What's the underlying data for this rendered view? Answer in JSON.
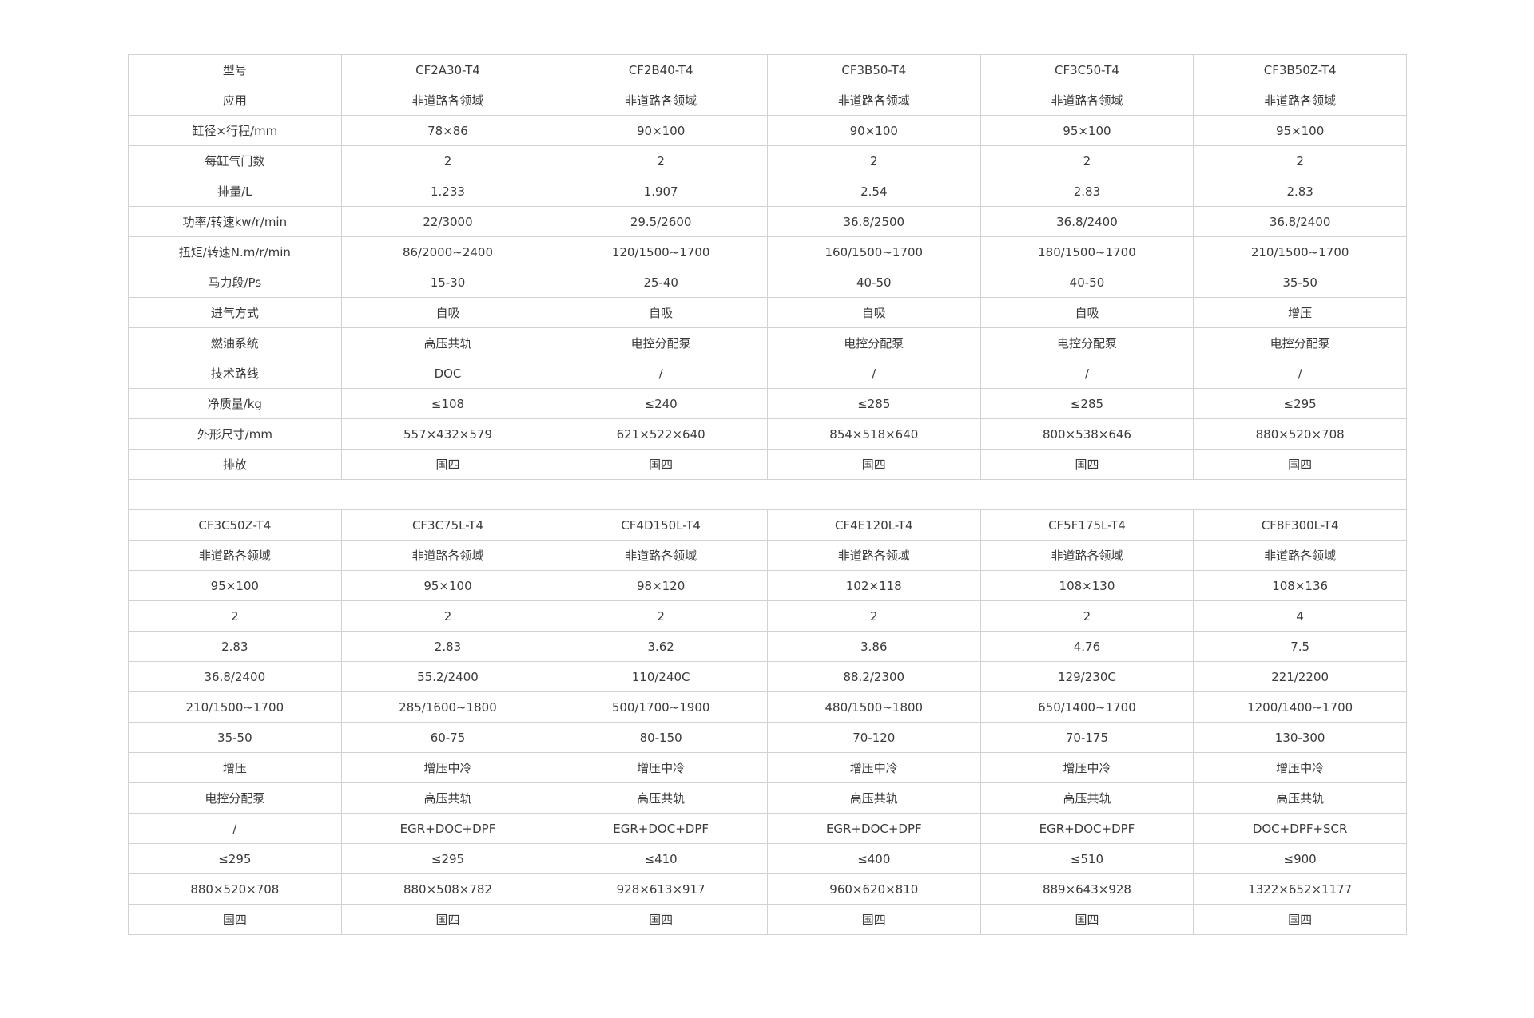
{
  "labels": [
    "型号",
    "应用",
    "缸径×行程/mm",
    "每缸气门数",
    "排量/L",
    "功率/转速kw/r/min",
    "扭矩/转速N.m/r/min",
    "马力段/Ps",
    "进气方式",
    "燃油系统",
    "技术路线",
    "净质量/kg",
    "外形尺寸/mm",
    "排放"
  ],
  "table1": {
    "models": [
      [
        "CF2A30-T4",
        "非道路各领域",
        "78×86",
        "2",
        "1.233",
        "22/3000",
        "86/2000~2400",
        "15-30",
        "自吸",
        "高压共轨",
        "DOC",
        "≤108",
        "557×432×579",
        "国四"
      ],
      [
        "CF2B40-T4",
        "非道路各领域",
        "90×100",
        "2",
        "1.907",
        "29.5/2600",
        "120/1500~1700",
        "25-40",
        "自吸",
        "电控分配泵",
        "/",
        "≤240",
        "621×522×640",
        "国四"
      ],
      [
        "CF3B50-T4",
        "非道路各领域",
        "90×100",
        "2",
        "2.54",
        "36.8/2500",
        "160/1500~1700",
        "40-50",
        "自吸",
        "电控分配泵",
        "/",
        "≤285",
        "854×518×640",
        "国四"
      ],
      [
        "CF3C50-T4",
        "非道路各领域",
        "95×100",
        "2",
        "2.83",
        "36.8/2400",
        "180/1500~1700",
        "40-50",
        "自吸",
        "电控分配泵",
        "/",
        "≤285",
        "800×538×646",
        "国四"
      ],
      [
        "CF3B50Z-T4",
        "非道路各领域",
        "95×100",
        "2",
        "2.83",
        "36.8/2400",
        "210/1500~1700",
        "35-50",
        "增压",
        "电控分配泵",
        "/",
        "≤295",
        "880×520×708",
        "国四"
      ]
    ]
  },
  "table2": {
    "models": [
      [
        "CF3C50Z-T4",
        "非道路各领域",
        "95×100",
        "2",
        "2.83",
        "36.8/2400",
        "210/1500~1700",
        "35-50",
        "增压",
        "电控分配泵",
        "/",
        "≤295",
        "880×520×708",
        "国四"
      ],
      [
        "CF3C75L-T4",
        "非道路各领域",
        "95×100",
        "2",
        "2.83",
        "55.2/2400",
        "285/1600~1800",
        "60-75",
        "增压中冷",
        "高压共轨",
        "EGR+DOC+DPF",
        "≤295",
        "880×508×782",
        "国四"
      ],
      [
        "CF4D150L-T4",
        "非道路各领域",
        "98×120",
        "2",
        "3.62",
        "110/240C",
        "500/1700~1900",
        "80-150",
        "增压中冷",
        "高压共轨",
        "EGR+DOC+DPF",
        "≤410",
        "928×613×917",
        "国四"
      ],
      [
        "CF4E120L-T4",
        "非道路各领域",
        "102×118",
        "2",
        "3.86",
        "88.2/2300",
        "480/1500~1800",
        "70-120",
        "增压中冷",
        "高压共轨",
        "EGR+DOC+DPF",
        "≤400",
        "960×620×810",
        "国四"
      ],
      [
        "CF5F175L-T4",
        "非道路各领域",
        "108×130",
        "2",
        "4.76",
        "129/230C",
        "650/1400~1700",
        "70-175",
        "增压中冷",
        "高压共轨",
        "EGR+DOC+DPF",
        "≤510",
        "889×643×928",
        "国四"
      ],
      [
        "CF8F300L-T4",
        "非道路各领域",
        "108×136",
        "4",
        "7.5",
        "221/2200",
        "1200/1400~1700",
        "130-300",
        "增压中冷",
        "高压共轨",
        "DOC+DPF+SCR",
        "≤900",
        "1322×652×1177",
        "国四"
      ]
    ]
  }
}
